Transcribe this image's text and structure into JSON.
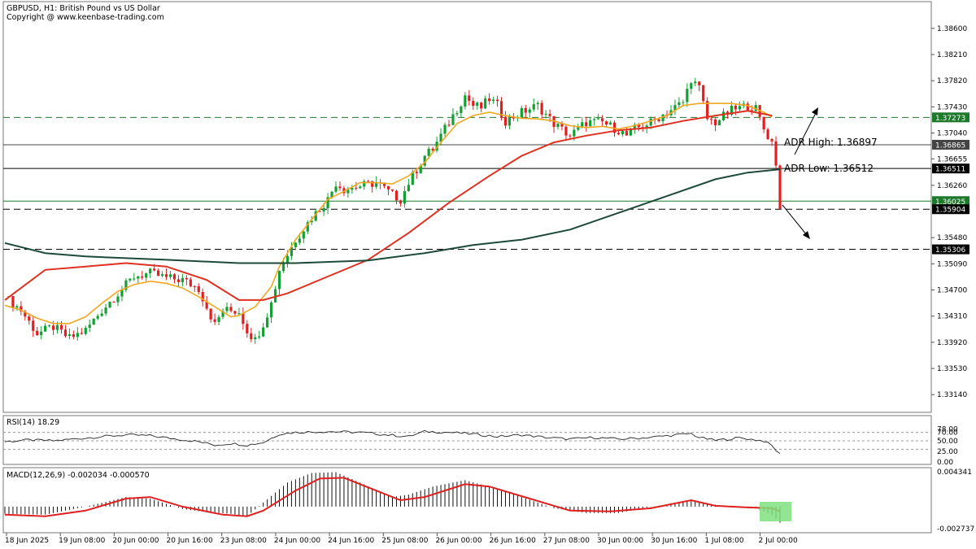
{
  "header": {
    "symbol_line": "GBPUSD, H1:  British Pound vs US Dollar",
    "copyright": "Copyright @ www.keenbase-trading.com"
  },
  "colors": {
    "bull": "#13a032",
    "bear": "#e02020",
    "ma_fast": "#f0a820",
    "ma_mid": "#e03020",
    "ma_slow": "#1d4a38",
    "grid": "#909090",
    "highlight": "#7fe07f"
  },
  "chart_data": [
    {
      "type": "candlestick",
      "title": "GBPUSD, H1:  British Pound vs US Dollar",
      "ylim": [
        1.329,
        1.3895
      ],
      "y_ticks": [
        "1.38600",
        "1.38210",
        "1.37820",
        "1.37430",
        "1.37040",
        "1.36655",
        "1.36260",
        "1.35480",
        "1.35090",
        "1.34700",
        "1.34310",
        "1.33920",
        "1.33530",
        "1.33140"
      ],
      "x_ticks": [
        "18 Jun 2025",
        "19 Jun 08:00",
        "20 Jun 00:00",
        "20 Jun 16:00",
        "23 Jun 08:00",
        "24 Jun 00:00",
        "24 Jun 16:00",
        "25 Jun 08:00",
        "26 Jun 00:00",
        "26 Jun 16:00",
        "27 Jun 08:00",
        "30 Jun 00:00",
        "30 Jun 16:00",
        "1 Jul 08:00",
        "2 Jul 00:00"
      ],
      "price_path": [
        [
          0,
          1.346
        ],
        [
          4,
          1.344
        ],
        [
          8,
          1.3405
        ],
        [
          12,
          1.3415
        ],
        [
          16,
          1.3398
        ],
        [
          20,
          1.341
        ],
        [
          24,
          1.344
        ],
        [
          28,
          1.3465
        ],
        [
          32,
          1.349
        ],
        [
          36,
          1.3495
        ],
        [
          40,
          1.3488
        ],
        [
          44,
          1.3485
        ],
        [
          48,
          1.3472
        ],
        [
          50,
          1.3445
        ],
        [
          52,
          1.3418
        ],
        [
          54,
          1.344
        ],
        [
          58,
          1.3438
        ],
        [
          60,
          1.341
        ],
        [
          62,
          1.3395
        ],
        [
          64,
          1.342
        ],
        [
          66,
          1.345
        ],
        [
          68,
          1.35
        ],
        [
          72,
          1.3545
        ],
        [
          76,
          1.3578
        ],
        [
          80,
          1.3605
        ],
        [
          82,
          1.363
        ],
        [
          84,
          1.362
        ],
        [
          88,
          1.3625
        ],
        [
          92,
          1.363
        ],
        [
          96,
          1.3612
        ],
        [
          98,
          1.3605
        ],
        [
          100,
          1.363
        ],
        [
          104,
          1.367
        ],
        [
          106,
          1.368
        ],
        [
          108,
          1.37
        ],
        [
          110,
          1.372
        ],
        [
          114,
          1.376
        ],
        [
          116,
          1.3745
        ],
        [
          118,
          1.3742
        ],
        [
          120,
          1.3755
        ],
        [
          122,
          1.3745
        ],
        [
          124,
          1.3722
        ],
        [
          128,
          1.3735
        ],
        [
          132,
          1.3745
        ],
        [
          136,
          1.3718
        ],
        [
          140,
          1.37
        ],
        [
          144,
          1.372
        ],
        [
          148,
          1.372
        ],
        [
          152,
          1.3708
        ],
        [
          154,
          1.37
        ],
        [
          156,
          1.371
        ],
        [
          160,
          1.372
        ],
        [
          164,
          1.3735
        ],
        [
          168,
          1.375
        ],
        [
          170,
          1.3785
        ],
        [
          172,
          1.377
        ],
        [
          174,
          1.3725
        ],
        [
          176,
          1.372
        ],
        [
          180,
          1.3738
        ],
        [
          184,
          1.3745
        ],
        [
          186,
          1.374
        ],
        [
          188,
          1.371
        ],
        [
          190,
          1.369
        ],
        [
          191,
          1.366
        ],
        [
          192,
          1.359
        ]
      ],
      "series": [
        {
          "name": "MA fast",
          "values": [
            [
              0,
              1.3447
            ],
            [
              4,
              1.344
            ],
            [
              8,
              1.3428
            ],
            [
              12,
              1.342
            ],
            [
              16,
              1.342
            ],
            [
              20,
              1.343
            ],
            [
              24,
              1.345
            ],
            [
              28,
              1.3468
            ],
            [
              32,
              1.3478
            ],
            [
              36,
              1.3483
            ],
            [
              40,
              1.348
            ],
            [
              44,
              1.3473
            ],
            [
              48,
              1.346
            ],
            [
              52,
              1.3445
            ],
            [
              56,
              1.343
            ],
            [
              58,
              1.3432
            ],
            [
              62,
              1.3445
            ],
            [
              66,
              1.3475
            ],
            [
              68,
              1.3505
            ],
            [
              70,
              1.3525
            ],
            [
              72,
              1.3545
            ],
            [
              76,
              1.3575
            ],
            [
              80,
              1.3605
            ],
            [
              84,
              1.3617
            ],
            [
              88,
              1.363
            ],
            [
              92,
              1.363
            ],
            [
              96,
              1.3628
            ],
            [
              100,
              1.364
            ],
            [
              104,
              1.366
            ],
            [
              108,
              1.369
            ],
            [
              112,
              1.3718
            ],
            [
              116,
              1.373
            ],
            [
              120,
              1.3735
            ],
            [
              124,
              1.373
            ],
            [
              128,
              1.3726
            ],
            [
              132,
              1.3725
            ],
            [
              136,
              1.3722
            ],
            [
              140,
              1.3715
            ],
            [
              144,
              1.3712
            ],
            [
              148,
              1.3714
            ],
            [
              152,
              1.371
            ],
            [
              156,
              1.3715
            ],
            [
              160,
              1.3722
            ],
            [
              164,
              1.373
            ],
            [
              168,
              1.3745
            ],
            [
              172,
              1.3748
            ],
            [
              176,
              1.3748
            ],
            [
              180,
              1.3748
            ],
            [
              184,
              1.3745
            ],
            [
              188,
              1.3735
            ],
            [
              190,
              1.3728
            ]
          ]
        },
        {
          "name": "MA mid",
          "values": [
            [
              0,
              1.3455
            ],
            [
              10,
              1.35
            ],
            [
              20,
              1.3505
            ],
            [
              30,
              1.351
            ],
            [
              40,
              1.3505
            ],
            [
              50,
              1.3485
            ],
            [
              58,
              1.3455
            ],
            [
              64,
              1.3455
            ],
            [
              70,
              1.3465
            ],
            [
              80,
              1.349
            ],
            [
              90,
              1.3515
            ],
            [
              100,
              1.3555
            ],
            [
              110,
              1.36
            ],
            [
              120,
              1.364
            ],
            [
              128,
              1.367
            ],
            [
              136,
              1.369
            ],
            [
              144,
              1.37
            ],
            [
              152,
              1.3708
            ],
            [
              160,
              1.3712
            ],
            [
              168,
              1.3722
            ],
            [
              176,
              1.373
            ],
            [
              184,
              1.3737
            ],
            [
              190,
              1.373
            ]
          ]
        },
        {
          "name": "MA slow",
          "values": [
            [
              0,
              1.354
            ],
            [
              10,
              1.3525
            ],
            [
              20,
              1.352
            ],
            [
              40,
              1.3515
            ],
            [
              58,
              1.351
            ],
            [
              72,
              1.351
            ],
            [
              90,
              1.3514
            ],
            [
              104,
              1.3525
            ],
            [
              116,
              1.3537
            ],
            [
              128,
              1.3545
            ],
            [
              140,
              1.356
            ],
            [
              152,
              1.3585
            ],
            [
              164,
              1.361
            ],
            [
              176,
              1.3635
            ],
            [
              184,
              1.3645
            ],
            [
              192,
              1.365
            ]
          ]
        }
      ],
      "levels": [
        {
          "value": 1.37273,
          "label": "1.37273",
          "style": "dashed",
          "color": "#1d7a2a"
        },
        {
          "value": 1.36865,
          "label": "1.36865",
          "style": "solid",
          "color": "#444444"
        },
        {
          "value": 1.36511,
          "label": "1.36511",
          "style": "solid",
          "color": "#000000"
        },
        {
          "value": 1.36025,
          "label": "1.36025",
          "style": "solid",
          "color": "#1d7a2a"
        },
        {
          "value": 1.35904,
          "label": "1.35904",
          "style": "dashed",
          "color": "#000000"
        },
        {
          "value": 1.35306,
          "label": "1.35306",
          "style": "dashed",
          "color": "#000000"
        }
      ],
      "annotations": {
        "adr_high": "ADR High: 1.36897",
        "adr_low": "ADR Low: 1.36512"
      }
    },
    {
      "type": "line",
      "title": "RSI(14) 18.29",
      "ylim": [
        0,
        100
      ],
      "y_ticks": [
        "78.00",
        "70.00",
        "50.00",
        "25.00",
        "0.00"
      ],
      "levels": [
        70,
        50,
        30
      ],
      "values": [
        [
          0,
          48
        ],
        [
          6,
          52
        ],
        [
          12,
          50
        ],
        [
          18,
          55
        ],
        [
          24,
          60
        ],
        [
          30,
          64
        ],
        [
          36,
          62
        ],
        [
          42,
          55
        ],
        [
          48,
          48
        ],
        [
          52,
          40
        ],
        [
          56,
          44
        ],
        [
          60,
          40
        ],
        [
          64,
          46
        ],
        [
          68,
          66
        ],
        [
          72,
          70
        ],
        [
          80,
          72
        ],
        [
          88,
          70
        ],
        [
          96,
          63
        ],
        [
          100,
          60
        ],
        [
          104,
          72
        ],
        [
          110,
          70
        ],
        [
          116,
          66
        ],
        [
          122,
          60
        ],
        [
          128,
          64
        ],
        [
          134,
          58
        ],
        [
          140,
          54
        ],
        [
          146,
          58
        ],
        [
          152,
          54
        ],
        [
          158,
          57
        ],
        [
          164,
          62
        ],
        [
          170,
          67
        ],
        [
          172,
          58
        ],
        [
          176,
          51
        ],
        [
          182,
          57
        ],
        [
          188,
          50
        ],
        [
          190,
          38
        ],
        [
          192,
          18
        ]
      ]
    },
    {
      "type": "bar",
      "title": "MACD(12,26,9) -0.002034 -0.000570",
      "ylim": [
        -0.00295,
        0.00455
      ],
      "y_ticks": [
        "0.004341",
        "-0.002737"
      ],
      "histogram": [
        [
          0,
          -0.0009
        ],
        [
          10,
          -0.001
        ],
        [
          20,
          0.0
        ],
        [
          30,
          0.0012
        ],
        [
          36,
          0.001
        ],
        [
          44,
          -0.0003
        ],
        [
          50,
          -0.0007
        ],
        [
          56,
          -0.0009
        ],
        [
          60,
          -0.0012
        ],
        [
          64,
          0.0005
        ],
        [
          70,
          0.003
        ],
        [
          76,
          0.0042
        ],
        [
          82,
          0.0043
        ],
        [
          88,
          0.003
        ],
        [
          96,
          0.0012
        ],
        [
          100,
          0.0015
        ],
        [
          106,
          0.0025
        ],
        [
          114,
          0.0033
        ],
        [
          120,
          0.0025
        ],
        [
          128,
          0.0012
        ],
        [
          136,
          -0.0002
        ],
        [
          144,
          -0.0008
        ],
        [
          152,
          -0.0008
        ],
        [
          158,
          -0.0002
        ],
        [
          166,
          0.0004
        ],
        [
          170,
          0.0007
        ],
        [
          174,
          0.0004
        ],
        [
          180,
          -0.0001
        ],
        [
          186,
          -0.0002
        ],
        [
          190,
          -0.001
        ],
        [
          192,
          -0.002
        ]
      ],
      "signal": [
        [
          0,
          -0.001
        ],
        [
          10,
          -0.0012
        ],
        [
          20,
          -0.0005
        ],
        [
          30,
          0.001
        ],
        [
          36,
          0.0012
        ],
        [
          44,
          0.0
        ],
        [
          54,
          -0.001
        ],
        [
          60,
          -0.0012
        ],
        [
          64,
          -0.0005
        ],
        [
          72,
          0.002
        ],
        [
          78,
          0.0035
        ],
        [
          84,
          0.0036
        ],
        [
          92,
          0.002
        ],
        [
          98,
          0.0008
        ],
        [
          104,
          0.0012
        ],
        [
          114,
          0.0028
        ],
        [
          120,
          0.0025
        ],
        [
          130,
          0.001
        ],
        [
          140,
          -0.0005
        ],
        [
          150,
          -0.0006
        ],
        [
          160,
          -0.0002
        ],
        [
          170,
          0.0008
        ],
        [
          176,
          0.0001
        ],
        [
          184,
          -0.0001
        ],
        [
          190,
          -0.0002
        ],
        [
          192,
          -0.0006
        ]
      ]
    }
  ]
}
